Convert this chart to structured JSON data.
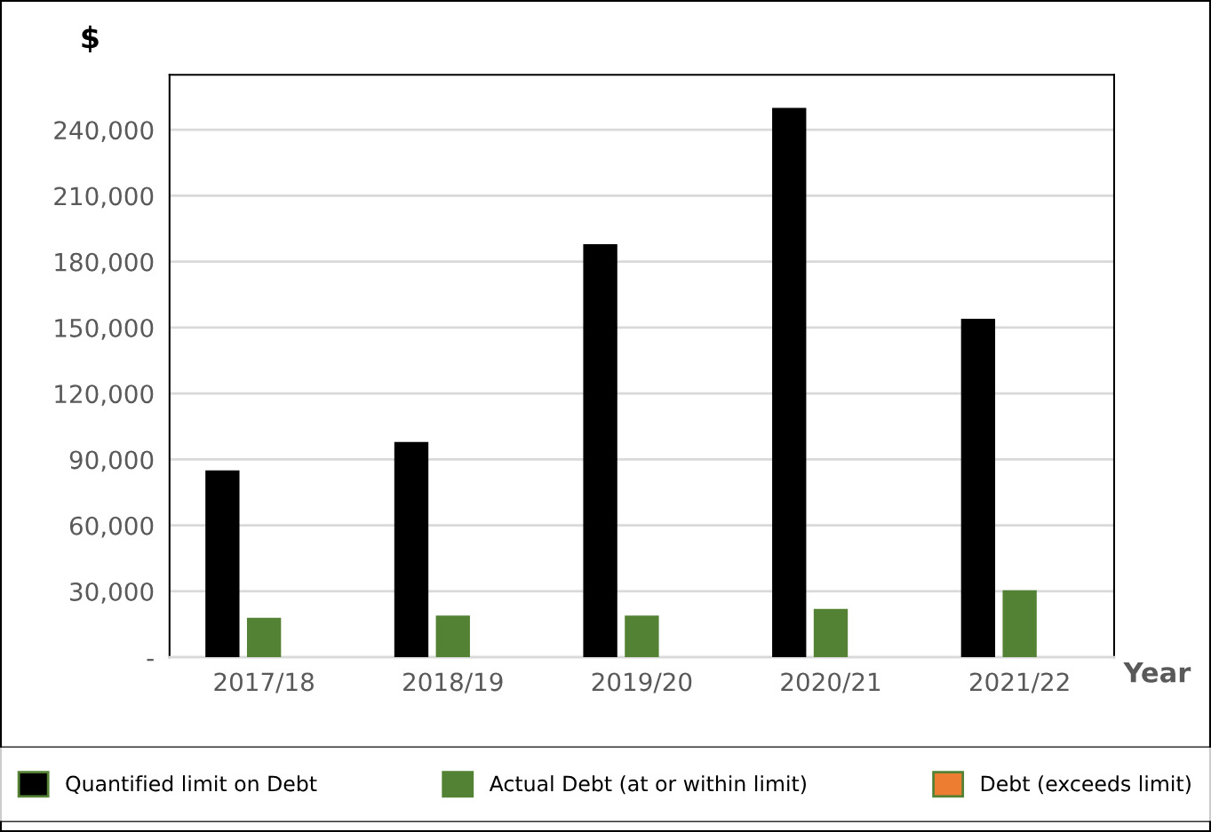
{
  "chart_data": {
    "type": "bar",
    "categories": [
      "2017/18",
      "2018/19",
      "2019/20",
      "2020/21",
      "2021/22"
    ],
    "series": [
      {
        "name": "Quantified limit on Debt",
        "color": "#000000",
        "values": [
          85000,
          98000,
          188000,
          250000,
          154000
        ]
      },
      {
        "name": "Actual Debt (at or within limit)",
        "color": "#548235",
        "values": [
          18000,
          19000,
          19000,
          22000,
          30500
        ]
      },
      {
        "name": "Debt (exceeds limit)",
        "color": "#ed7d31",
        "values": [
          null,
          null,
          null,
          null,
          null
        ]
      }
    ],
    "xlabel": "Year",
    "ylabel": "$",
    "ylim": [
      0,
      265000
    ],
    "yticks": [
      {
        "value": 0,
        "label": "-"
      },
      {
        "value": 30000,
        "label": "30,000"
      },
      {
        "value": 60000,
        "label": "60,000"
      },
      {
        "value": 90000,
        "label": "90,000"
      },
      {
        "value": 120000,
        "label": "120,000"
      },
      {
        "value": 150000,
        "label": "150,000"
      },
      {
        "value": 180000,
        "label": "180,000"
      },
      {
        "value": 210000,
        "label": "210,000"
      },
      {
        "value": 240000,
        "label": "240,000"
      }
    ],
    "grid": "y",
    "legend": "bottom"
  }
}
